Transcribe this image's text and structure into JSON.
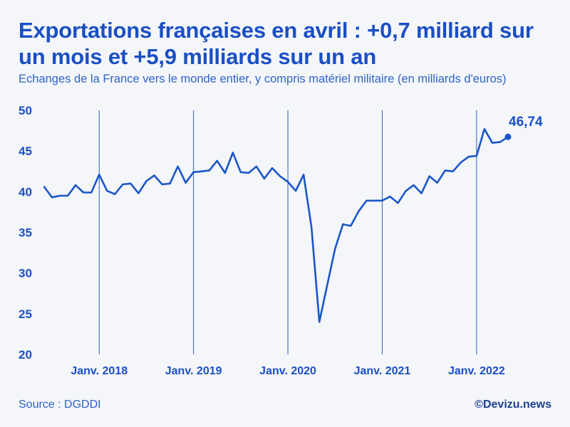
{
  "chart_data": {
    "type": "line",
    "title": "Exportations françaises en avril : +0,7 milliard sur un mois et +5,9 milliards sur un an",
    "subtitle": "Echanges de la France vers le monde entier, y compris matériel militaire (en milliards d'euros)",
    "xlabel": "",
    "ylabel": "",
    "ylim": [
      20,
      50
    ],
    "yticks": [
      "20",
      "25",
      "30",
      "35",
      "40",
      "45",
      "50"
    ],
    "xticks": [
      {
        "label": "Janv. 2018",
        "index": 7
      },
      {
        "label": "Janv. 2019",
        "index": 19
      },
      {
        "label": "Janv. 2020",
        "index": 31
      },
      {
        "label": "Janv. 2021",
        "index": 43
      },
      {
        "label": "Janv. 2022",
        "index": 55
      }
    ],
    "start": "2017-06",
    "series": [
      {
        "name": "Exportations",
        "color": "#1a56c7",
        "values": [
          40.6,
          39.3,
          39.5,
          39.5,
          40.8,
          39.9,
          39.9,
          42.1,
          40.1,
          39.7,
          40.9,
          41.0,
          39.8,
          41.3,
          42.0,
          40.9,
          41.0,
          43.1,
          41.1,
          42.4,
          42.5,
          42.6,
          43.8,
          42.3,
          44.8,
          42.4,
          42.3,
          43.1,
          41.6,
          42.9,
          41.9,
          41.2,
          40.1,
          42.1,
          35.6,
          24.0,
          28.5,
          33.0,
          36.0,
          35.8,
          37.6,
          38.9,
          38.9,
          38.9,
          39.4,
          38.6,
          40.1,
          40.8,
          39.8,
          41.9,
          41.1,
          42.6,
          42.5,
          43.6,
          44.3,
          44.4,
          47.7,
          46.0,
          46.1,
          46.74
        ]
      }
    ],
    "last_value_label": "46,74",
    "source": "Source : DGDDI",
    "brand": "©Devizu.news"
  }
}
